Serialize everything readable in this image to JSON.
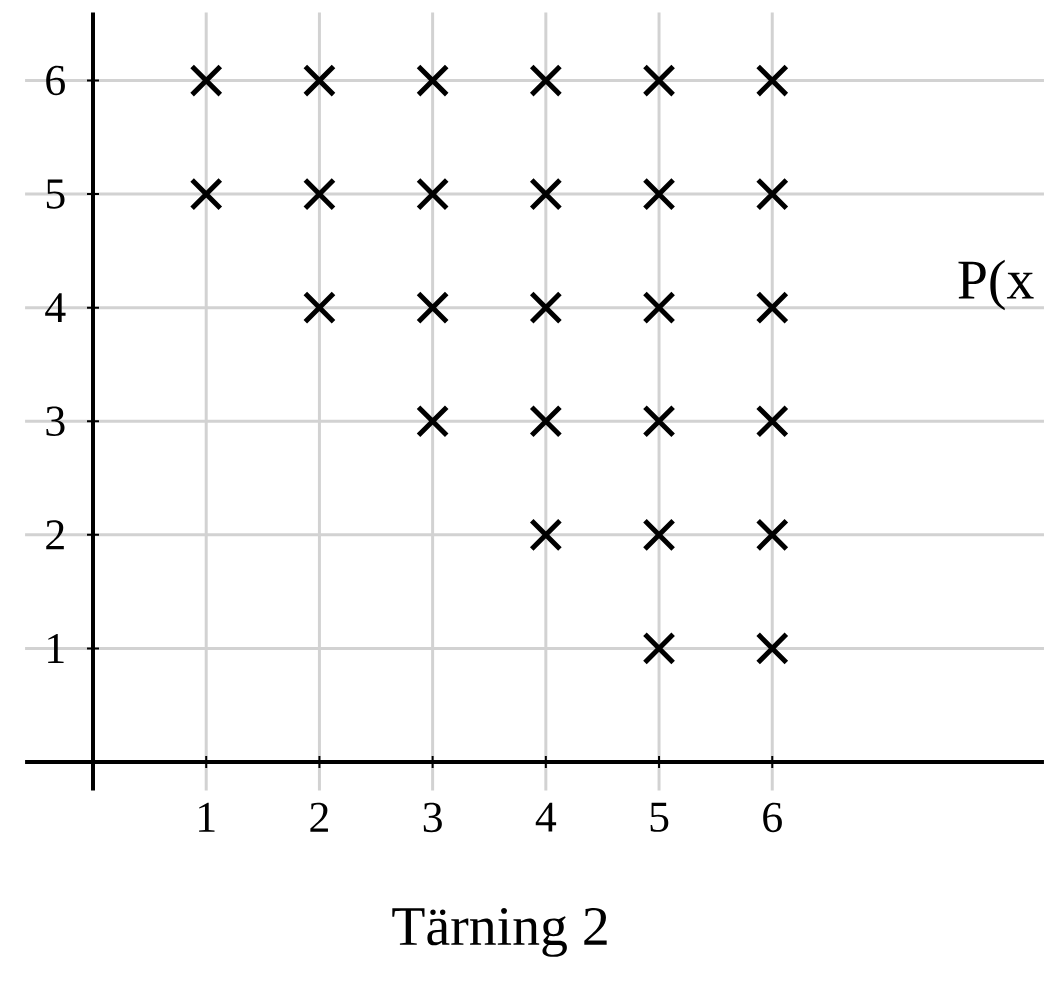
{
  "chart_data": {
    "type": "scatter",
    "xlabel": "Tärning 2",
    "x": [
      1,
      2,
      3,
      4,
      5,
      6,
      1,
      2,
      3,
      4,
      5,
      6,
      2,
      3,
      4,
      5,
      6,
      3,
      4,
      5,
      6,
      4,
      5,
      6,
      5,
      6
    ],
    "values": [
      6,
      6,
      6,
      6,
      6,
      6,
      5,
      5,
      5,
      5,
      5,
      5,
      4,
      4,
      4,
      4,
      4,
      3,
      3,
      3,
      3,
      2,
      2,
      2,
      1,
      1
    ],
    "color": "#000000",
    "marker": "cross",
    "xlim": [
      -0.6,
      8.4
    ],
    "ylim": [
      -0.25,
      6.6
    ],
    "xticks": [
      1,
      2,
      3,
      4,
      5,
      6
    ],
    "yticks": [
      1,
      2,
      3,
      4,
      5,
      6
    ],
    "grid": true,
    "annotations": [
      "P(x"
    ]
  }
}
